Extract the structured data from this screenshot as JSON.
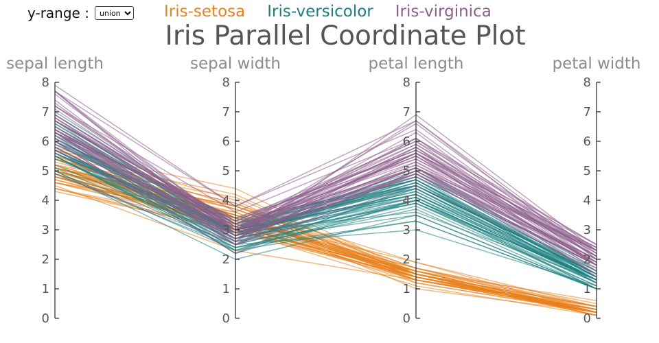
{
  "controls": {
    "range_label": "y-range :",
    "range_selected": "union",
    "range_options": [
      "union"
    ]
  },
  "chart_data": {
    "type": "parallel-coordinates",
    "title": "Iris Parallel Coordinate Plot",
    "axes": [
      "sepal length",
      "sepal width",
      "petal length",
      "petal width"
    ],
    "ylim": [
      0,
      8
    ],
    "yticks": [
      "0",
      "1",
      "2",
      "3",
      "4",
      "5",
      "6",
      "7",
      "8"
    ],
    "legend": [
      {
        "name": "Iris-setosa",
        "color": "#e8821e"
      },
      {
        "name": "Iris-versicolor",
        "color": "#1a7f7f"
      },
      {
        "name": "Iris-virginica",
        "color": "#8c5f8c"
      }
    ],
    "series": [
      {
        "name": "Iris-setosa",
        "color": "#e8821e",
        "rows": [
          [
            5.1,
            3.5,
            1.4,
            0.2
          ],
          [
            4.9,
            3.0,
            1.4,
            0.2
          ],
          [
            4.7,
            3.2,
            1.3,
            0.2
          ],
          [
            4.6,
            3.1,
            1.5,
            0.2
          ],
          [
            5.0,
            3.6,
            1.4,
            0.2
          ],
          [
            5.4,
            3.9,
            1.7,
            0.4
          ],
          [
            4.6,
            3.4,
            1.4,
            0.3
          ],
          [
            5.0,
            3.4,
            1.5,
            0.2
          ],
          [
            4.4,
            2.9,
            1.4,
            0.2
          ],
          [
            4.9,
            3.1,
            1.5,
            0.1
          ],
          [
            5.4,
            3.7,
            1.5,
            0.2
          ],
          [
            4.8,
            3.4,
            1.6,
            0.2
          ],
          [
            4.8,
            3.0,
            1.4,
            0.1
          ],
          [
            4.3,
            3.0,
            1.1,
            0.1
          ],
          [
            5.8,
            4.0,
            1.2,
            0.2
          ],
          [
            5.7,
            4.4,
            1.5,
            0.4
          ],
          [
            5.4,
            3.9,
            1.3,
            0.4
          ],
          [
            5.1,
            3.5,
            1.4,
            0.3
          ],
          [
            5.7,
            3.8,
            1.7,
            0.3
          ],
          [
            5.1,
            3.8,
            1.5,
            0.3
          ],
          [
            5.4,
            3.4,
            1.7,
            0.2
          ],
          [
            5.1,
            3.7,
            1.5,
            0.4
          ],
          [
            4.6,
            3.6,
            1.0,
            0.2
          ],
          [
            5.1,
            3.3,
            1.7,
            0.5
          ],
          [
            4.8,
            3.4,
            1.9,
            0.2
          ],
          [
            5.0,
            3.0,
            1.6,
            0.2
          ],
          [
            5.0,
            3.4,
            1.6,
            0.4
          ],
          [
            5.2,
            3.5,
            1.5,
            0.2
          ],
          [
            5.2,
            3.4,
            1.4,
            0.2
          ],
          [
            4.7,
            3.2,
            1.6,
            0.2
          ],
          [
            4.8,
            3.1,
            1.6,
            0.2
          ],
          [
            5.4,
            3.4,
            1.5,
            0.4
          ],
          [
            5.2,
            4.1,
            1.5,
            0.1
          ],
          [
            5.5,
            4.2,
            1.4,
            0.2
          ],
          [
            4.9,
            3.1,
            1.5,
            0.1
          ],
          [
            5.0,
            3.2,
            1.2,
            0.2
          ],
          [
            5.5,
            3.5,
            1.3,
            0.2
          ],
          [
            4.9,
            3.1,
            1.5,
            0.1
          ],
          [
            4.4,
            3.0,
            1.3,
            0.2
          ],
          [
            5.1,
            3.4,
            1.5,
            0.2
          ],
          [
            5.0,
            3.5,
            1.3,
            0.3
          ],
          [
            4.5,
            2.3,
            1.3,
            0.3
          ],
          [
            4.4,
            3.2,
            1.3,
            0.2
          ],
          [
            5.0,
            3.5,
            1.6,
            0.6
          ],
          [
            5.1,
            3.8,
            1.9,
            0.4
          ],
          [
            4.8,
            3.0,
            1.4,
            0.3
          ],
          [
            5.1,
            3.8,
            1.6,
            0.2
          ],
          [
            4.6,
            3.2,
            1.4,
            0.2
          ],
          [
            5.3,
            3.7,
            1.5,
            0.2
          ],
          [
            5.0,
            3.3,
            1.4,
            0.2
          ]
        ]
      },
      {
        "name": "Iris-versicolor",
        "color": "#1a7f7f",
        "rows": [
          [
            7.0,
            3.2,
            4.7,
            1.4
          ],
          [
            6.4,
            3.2,
            4.5,
            1.5
          ],
          [
            6.9,
            3.1,
            4.9,
            1.5
          ],
          [
            5.5,
            2.3,
            4.0,
            1.3
          ],
          [
            6.5,
            2.8,
            4.6,
            1.5
          ],
          [
            5.7,
            2.8,
            4.5,
            1.3
          ],
          [
            6.3,
            3.3,
            4.7,
            1.6
          ],
          [
            4.9,
            2.4,
            3.3,
            1.0
          ],
          [
            6.6,
            2.9,
            4.6,
            1.3
          ],
          [
            5.2,
            2.7,
            3.9,
            1.4
          ],
          [
            5.0,
            2.0,
            3.5,
            1.0
          ],
          [
            5.9,
            3.0,
            4.2,
            1.5
          ],
          [
            6.0,
            2.2,
            4.0,
            1.0
          ],
          [
            6.1,
            2.9,
            4.7,
            1.4
          ],
          [
            5.6,
            2.9,
            3.6,
            1.3
          ],
          [
            6.7,
            3.1,
            4.4,
            1.4
          ],
          [
            5.6,
            3.0,
            4.5,
            1.5
          ],
          [
            5.8,
            2.7,
            4.1,
            1.0
          ],
          [
            6.2,
            2.2,
            4.5,
            1.5
          ],
          [
            5.6,
            2.5,
            3.9,
            1.1
          ],
          [
            5.9,
            3.2,
            4.8,
            1.8
          ],
          [
            6.1,
            2.8,
            4.0,
            1.3
          ],
          [
            6.3,
            2.5,
            4.9,
            1.5
          ],
          [
            6.1,
            2.8,
            4.7,
            1.2
          ],
          [
            6.4,
            2.9,
            4.3,
            1.3
          ],
          [
            6.6,
            3.0,
            4.4,
            1.4
          ],
          [
            6.8,
            2.8,
            4.8,
            1.4
          ],
          [
            6.7,
            3.0,
            5.0,
            1.7
          ],
          [
            6.0,
            2.9,
            4.5,
            1.5
          ],
          [
            5.7,
            2.6,
            3.5,
            1.0
          ],
          [
            5.5,
            2.4,
            3.8,
            1.1
          ],
          [
            5.5,
            2.4,
            3.7,
            1.0
          ],
          [
            5.8,
            2.7,
            3.9,
            1.2
          ],
          [
            6.0,
            2.7,
            5.1,
            1.6
          ],
          [
            5.4,
            3.0,
            4.5,
            1.5
          ],
          [
            6.0,
            3.4,
            4.5,
            1.6
          ],
          [
            6.7,
            3.1,
            4.7,
            1.5
          ],
          [
            6.3,
            2.3,
            4.4,
            1.3
          ],
          [
            5.6,
            3.0,
            4.1,
            1.3
          ],
          [
            5.5,
            2.5,
            4.0,
            1.3
          ],
          [
            5.5,
            2.6,
            4.4,
            1.2
          ],
          [
            6.1,
            3.0,
            4.6,
            1.4
          ],
          [
            5.8,
            2.6,
            4.0,
            1.2
          ],
          [
            5.0,
            2.3,
            3.3,
            1.0
          ],
          [
            5.6,
            2.7,
            4.2,
            1.3
          ],
          [
            5.7,
            3.0,
            4.2,
            1.2
          ],
          [
            5.7,
            2.9,
            4.2,
            1.3
          ],
          [
            6.2,
            2.9,
            4.3,
            1.3
          ],
          [
            5.1,
            2.5,
            3.0,
            1.1
          ],
          [
            5.7,
            2.8,
            4.1,
            1.3
          ]
        ]
      },
      {
        "name": "Iris-virginica",
        "color": "#8c5f8c",
        "rows": [
          [
            6.3,
            3.3,
            6.0,
            2.5
          ],
          [
            5.8,
            2.7,
            5.1,
            1.9
          ],
          [
            7.1,
            3.0,
            5.9,
            2.1
          ],
          [
            6.3,
            2.9,
            5.6,
            1.8
          ],
          [
            6.5,
            3.0,
            5.8,
            2.2
          ],
          [
            7.6,
            3.0,
            6.6,
            2.1
          ],
          [
            4.9,
            2.5,
            4.5,
            1.7
          ],
          [
            7.3,
            2.9,
            6.3,
            1.8
          ],
          [
            6.7,
            2.5,
            5.8,
            1.8
          ],
          [
            7.2,
            3.6,
            6.1,
            2.5
          ],
          [
            6.5,
            3.2,
            5.1,
            2.0
          ],
          [
            6.4,
            2.7,
            5.3,
            1.9
          ],
          [
            6.8,
            3.0,
            5.5,
            2.1
          ],
          [
            5.7,
            2.5,
            5.0,
            2.0
          ],
          [
            5.8,
            2.8,
            5.1,
            2.4
          ],
          [
            6.4,
            3.2,
            5.3,
            2.3
          ],
          [
            6.5,
            3.0,
            5.5,
            1.8
          ],
          [
            7.7,
            3.8,
            6.7,
            2.2
          ],
          [
            7.7,
            2.6,
            6.9,
            2.3
          ],
          [
            6.0,
            2.2,
            5.0,
            1.5
          ],
          [
            6.9,
            3.2,
            5.7,
            2.3
          ],
          [
            5.6,
            2.8,
            4.9,
            2.0
          ],
          [
            7.7,
            2.8,
            6.7,
            2.0
          ],
          [
            6.3,
            2.7,
            4.9,
            1.8
          ],
          [
            6.7,
            3.3,
            5.7,
            2.1
          ],
          [
            7.2,
            3.2,
            6.0,
            1.8
          ],
          [
            6.2,
            2.8,
            4.8,
            1.8
          ],
          [
            6.1,
            3.0,
            4.9,
            1.8
          ],
          [
            6.4,
            2.8,
            5.6,
            2.1
          ],
          [
            7.2,
            3.0,
            5.8,
            1.6
          ],
          [
            7.4,
            2.8,
            6.1,
            1.9
          ],
          [
            7.9,
            3.8,
            6.4,
            2.0
          ],
          [
            6.4,
            2.8,
            5.6,
            2.2
          ],
          [
            6.3,
            2.8,
            5.1,
            1.5
          ],
          [
            6.1,
            2.6,
            5.6,
            1.4
          ],
          [
            7.7,
            3.0,
            6.1,
            2.3
          ],
          [
            6.3,
            3.4,
            5.6,
            2.4
          ],
          [
            6.4,
            3.1,
            5.5,
            1.8
          ],
          [
            6.0,
            3.0,
            4.8,
            1.8
          ],
          [
            6.9,
            3.1,
            5.4,
            2.1
          ],
          [
            6.7,
            3.1,
            5.6,
            2.4
          ],
          [
            6.9,
            3.1,
            5.1,
            2.3
          ],
          [
            5.8,
            2.7,
            5.1,
            1.9
          ],
          [
            6.8,
            3.2,
            5.9,
            2.3
          ],
          [
            6.7,
            3.3,
            5.7,
            2.5
          ],
          [
            6.7,
            3.0,
            5.2,
            2.3
          ],
          [
            6.3,
            2.5,
            5.0,
            1.9
          ],
          [
            6.5,
            3.0,
            5.2,
            2.0
          ],
          [
            6.2,
            3.4,
            5.4,
            2.3
          ],
          [
            5.9,
            3.0,
            5.1,
            1.8
          ]
        ]
      }
    ]
  }
}
